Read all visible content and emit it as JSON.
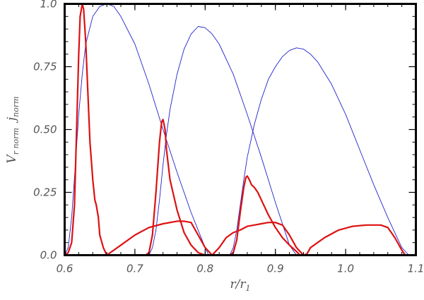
{
  "chart_data": {
    "type": "line",
    "title": "",
    "xlabel": "r/r",
    "xlabel_sub": "1",
    "ylabel_parts": [
      {
        "text": "V",
        "sub": "r norm"
      },
      {
        "text": "j",
        "sub": "norm"
      }
    ],
    "xlim": [
      0.6,
      1.1
    ],
    "ylim": [
      0.0,
      1.0
    ],
    "xticks": [
      0.6,
      0.7,
      0.8,
      0.9,
      1.0,
      1.1
    ],
    "xtick_labels": [
      "0.6",
      "0.7",
      "0.8",
      "0.9",
      "1.0",
      "1.1"
    ],
    "yticks": [
      0.0,
      0.25,
      0.5,
      0.75,
      1.0
    ],
    "ytick_labels": [
      "0.0",
      "0.25",
      "0.50",
      "0.75",
      "1.0"
    ],
    "grid": false,
    "series": [
      {
        "color": "#2222cc",
        "width": 0.9,
        "x": [
          0.6,
          0.605,
          0.61,
          0.615,
          0.62,
          0.625,
          0.63,
          0.64,
          0.65,
          0.66,
          0.67,
          0.68,
          0.7,
          0.72,
          0.74,
          0.76,
          0.78,
          0.8,
          0.805
        ],
        "y": [
          0.0,
          0.03,
          0.15,
          0.35,
          0.56,
          0.72,
          0.84,
          0.95,
          0.99,
          1.0,
          0.99,
          0.95,
          0.84,
          0.68,
          0.5,
          0.33,
          0.17,
          0.03,
          0.0
        ]
      },
      {
        "color": "#2222cc",
        "width": 0.9,
        "x": [
          0.72,
          0.725,
          0.73,
          0.735,
          0.74,
          0.745,
          0.75,
          0.76,
          0.77,
          0.78,
          0.79,
          0.8,
          0.81,
          0.82,
          0.84,
          0.86,
          0.88,
          0.9,
          0.92,
          0.93
        ],
        "y": [
          0.0,
          0.03,
          0.1,
          0.22,
          0.36,
          0.48,
          0.58,
          0.72,
          0.82,
          0.88,
          0.91,
          0.905,
          0.88,
          0.84,
          0.72,
          0.56,
          0.39,
          0.21,
          0.04,
          0.0
        ]
      },
      {
        "color": "#2222cc",
        "width": 0.9,
        "x": [
          0.835,
          0.84,
          0.845,
          0.85,
          0.855,
          0.86,
          0.87,
          0.88,
          0.89,
          0.9,
          0.91,
          0.92,
          0.93,
          0.94,
          0.95,
          0.96,
          0.98,
          1.0,
          1.02,
          1.04,
          1.06,
          1.08,
          1.09
        ],
        "y": [
          0.0,
          0.03,
          0.1,
          0.2,
          0.3,
          0.39,
          0.52,
          0.62,
          0.7,
          0.75,
          0.79,
          0.815,
          0.825,
          0.82,
          0.8,
          0.77,
          0.68,
          0.56,
          0.42,
          0.28,
          0.15,
          0.03,
          0.0
        ]
      },
      {
        "color": "#dd1111",
        "width": 2.2,
        "x": [
          0.6,
          0.605,
          0.61,
          0.614,
          0.617,
          0.62,
          0.622,
          0.625,
          0.627,
          0.63,
          0.633,
          0.636,
          0.64,
          0.643,
          0.645,
          0.648,
          0.65,
          0.655,
          0.66,
          0.665,
          0.68,
          0.7,
          0.72,
          0.74,
          0.76,
          0.77,
          0.78,
          0.79,
          0.8,
          0.81,
          0.82,
          0.83,
          0.84,
          0.85,
          0.86,
          0.87,
          0.88,
          0.89,
          0.9,
          0.91,
          0.92,
          0.93,
          0.94,
          0.945,
          0.95,
          0.97,
          0.99,
          1.01,
          1.03,
          1.05,
          1.06,
          1.07,
          1.08,
          1.085
        ],
        "y": [
          0.0,
          0.01,
          0.05,
          0.2,
          0.5,
          0.8,
          0.95,
          1.0,
          0.98,
          0.85,
          0.65,
          0.45,
          0.3,
          0.22,
          0.2,
          0.15,
          0.08,
          0.03,
          0.0,
          0.01,
          0.04,
          0.08,
          0.11,
          0.125,
          0.135,
          0.135,
          0.13,
          0.08,
          0.03,
          0.0,
          0.03,
          0.07,
          0.09,
          0.1,
          0.115,
          0.12,
          0.125,
          0.13,
          0.13,
          0.12,
          0.08,
          0.03,
          0.0,
          0.005,
          0.03,
          0.07,
          0.1,
          0.115,
          0.12,
          0.12,
          0.11,
          0.07,
          0.02,
          0.0
        ]
      },
      {
        "color": "#dd1111",
        "width": 2.2,
        "x": [
          0.715,
          0.72,
          0.725,
          0.73,
          0.735,
          0.738,
          0.74,
          0.743,
          0.745,
          0.75,
          0.76,
          0.77,
          0.78,
          0.79,
          0.8
        ],
        "y": [
          0.0,
          0.01,
          0.08,
          0.25,
          0.45,
          0.53,
          0.54,
          0.5,
          0.42,
          0.3,
          0.18,
          0.09,
          0.04,
          0.01,
          0.0
        ]
      },
      {
        "color": "#dd1111",
        "width": 2.2,
        "x": [
          0.835,
          0.84,
          0.845,
          0.85,
          0.855,
          0.858,
          0.86,
          0.863,
          0.866,
          0.87,
          0.875,
          0.88,
          0.89,
          0.9,
          0.91,
          0.92,
          0.93,
          0.935
        ],
        "y": [
          0.0,
          0.01,
          0.06,
          0.17,
          0.27,
          0.31,
          0.315,
          0.3,
          0.28,
          0.27,
          0.25,
          0.22,
          0.16,
          0.11,
          0.07,
          0.04,
          0.015,
          0.0
        ]
      }
    ]
  }
}
